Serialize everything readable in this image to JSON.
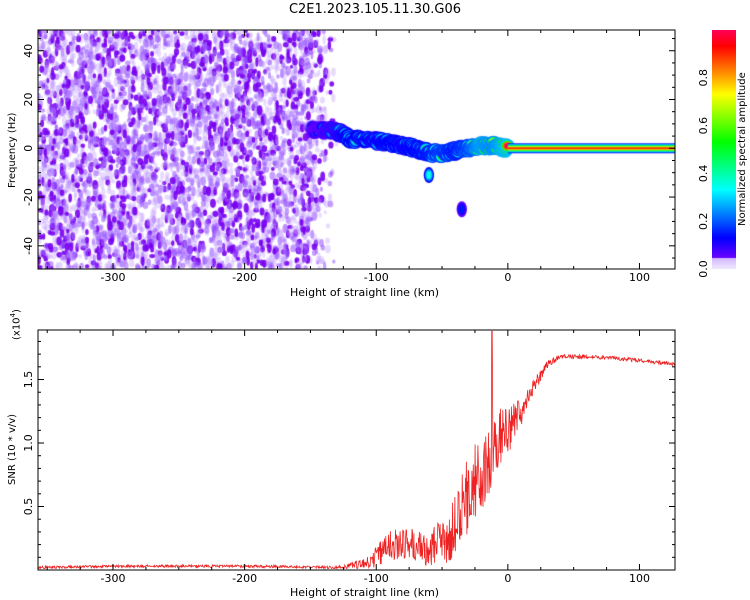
{
  "title": "C2E1.2023.105.11.30.G06",
  "chart_data": [
    {
      "type": "heatmap",
      "xlabel": "Height of straight line (km)",
      "ylabel": "Frequency (Hz)",
      "xlim": [
        -357,
        127
      ],
      "ylim": [
        -49.5,
        48.5
      ],
      "xticks": [
        -300,
        -200,
        -100,
        0,
        100
      ],
      "yticks": [
        40,
        20,
        0,
        -20,
        -40
      ],
      "colorbar": {
        "label": "Normalized spectral amplitude",
        "range": [
          0,
          1
        ],
        "ticks": [
          "0.0",
          "0.2",
          "0.4",
          "0.6",
          "0.8"
        ]
      },
      "noise_region_x": [
        -357,
        -130
      ],
      "ridge": {
        "x": [
          -150,
          -130,
          -120,
          -100,
          -90,
          -80,
          -70,
          -60,
          -50,
          -40,
          -30,
          -20,
          -10,
          0,
          127
        ],
        "freq": [
          8,
          7,
          4,
          3,
          2,
          1,
          0,
          -2,
          -2,
          -1,
          0,
          1,
          1,
          0,
          0
        ],
        "amp": [
          0.15,
          0.3,
          0.45,
          0.4,
          0.45,
          0.4,
          0.45,
          0.5,
          0.6,
          0.5,
          0.6,
          0.85,
          0.8,
          0.95,
          1.0
        ]
      },
      "blobs": [
        {
          "x": -60,
          "freq": -11,
          "amp": 0.35
        },
        {
          "x": -35,
          "freq": -25,
          "amp": 0.15
        }
      ]
    },
    {
      "type": "line",
      "xlabel": "Height of straight line (km)",
      "ylabel": "SNR (10 * v/v)",
      "scale_label": "(x10",
      "scale_exp": "4",
      "scale_close": ")",
      "xlim": [
        -357,
        127
      ],
      "ylim": [
        0,
        1.89
      ],
      "xticks": [
        -300,
        -200,
        -100,
        0,
        100
      ],
      "yticks": [
        "0.5",
        "1.0",
        "1.5"
      ],
      "color": "#ee2222",
      "series": {
        "x": [
          -357,
          -300,
          -200,
          -130,
          -110,
          -100,
          -90,
          -80,
          -60,
          -45,
          -40,
          -30,
          -20,
          -10,
          0,
          10,
          20,
          30,
          40,
          60,
          80,
          100,
          127
        ],
        "y": [
          0.02,
          0.03,
          0.03,
          0.02,
          0.05,
          0.1,
          0.2,
          0.2,
          0.18,
          0.25,
          0.35,
          0.6,
          0.8,
          1.0,
          1.1,
          1.25,
          1.45,
          1.62,
          1.68,
          1.68,
          1.67,
          1.65,
          1.62
        ],
        "noise": [
          0.01,
          0.01,
          0.01,
          0.01,
          0.04,
          0.08,
          0.12,
          0.12,
          0.15,
          0.2,
          0.25,
          0.3,
          0.35,
          0.3,
          0.2,
          0.12,
          0.06,
          0.03,
          0.02,
          0.015,
          0.015,
          0.015,
          0.015
        ],
        "peak": {
          "x": -12,
          "y": 1.88
        }
      }
    }
  ]
}
